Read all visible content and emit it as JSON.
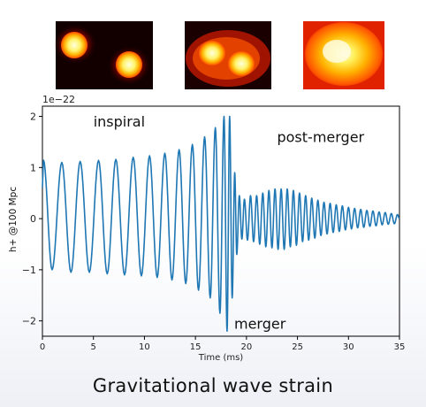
{
  "caption": "Gravitational wave strain",
  "panels": [
    {
      "name": "inspiral-snapshot",
      "description": "two separate glowing stars"
    },
    {
      "name": "merger-snapshot",
      "description": "two touching glowing stars"
    },
    {
      "name": "remnant-snapshot",
      "description": "single merged glowing remnant"
    }
  ],
  "chart_data": {
    "type": "line",
    "title": "",
    "xlabel": "Time (ms)",
    "ylabel": "h+ @100 Mpc",
    "offset_text": "1e−22",
    "xlim": [
      0,
      35
    ],
    "ylim": [
      -2.3,
      2.2
    ],
    "xticks": [
      0,
      5,
      10,
      15,
      20,
      25,
      30,
      35
    ],
    "xtick_labels": [
      "0",
      "5",
      "10",
      "15",
      "20",
      "25",
      "30",
      "35"
    ],
    "yticks": [
      -2,
      -1,
      0,
      1,
      2
    ],
    "ytick_labels": [
      "−2",
      "−1",
      "0",
      "1",
      "2"
    ],
    "grid": false,
    "line_color": "#1f77b4",
    "annotations": [
      {
        "text": "inspiral",
        "x": 5.0,
        "y": 1.8
      },
      {
        "text": "post-merger",
        "x": 23.0,
        "y": 1.5
      },
      {
        "text": "merger",
        "x": 18.8,
        "y": -2.15
      }
    ],
    "series": [
      {
        "name": "",
        "peaks": [
          {
            "t": 0.1,
            "v": 1.15
          },
          {
            "t": 0.95,
            "v": -1.0
          },
          {
            "t": 1.9,
            "v": 1.1
          },
          {
            "t": 2.8,
            "v": -1.05
          },
          {
            "t": 3.7,
            "v": 1.12
          },
          {
            "t": 4.6,
            "v": -1.05
          },
          {
            "t": 5.5,
            "v": 1.14
          },
          {
            "t": 6.35,
            "v": -1.08
          },
          {
            "t": 7.2,
            "v": 1.16
          },
          {
            "t": 8.05,
            "v": -1.1
          },
          {
            "t": 8.9,
            "v": 1.2
          },
          {
            "t": 9.7,
            "v": -1.12
          },
          {
            "t": 10.5,
            "v": 1.23
          },
          {
            "t": 11.25,
            "v": -1.15
          },
          {
            "t": 12.0,
            "v": 1.28
          },
          {
            "t": 12.7,
            "v": -1.2
          },
          {
            "t": 13.4,
            "v": 1.35
          },
          {
            "t": 14.05,
            "v": -1.27
          },
          {
            "t": 14.7,
            "v": 1.45
          },
          {
            "t": 15.3,
            "v": -1.4
          },
          {
            "t": 15.9,
            "v": 1.6
          },
          {
            "t": 16.45,
            "v": -1.55
          },
          {
            "t": 16.95,
            "v": 1.78
          },
          {
            "t": 17.4,
            "v": -1.85
          },
          {
            "t": 17.8,
            "v": 2.0
          },
          {
            "t": 18.1,
            "v": -2.2
          },
          {
            "t": 18.35,
            "v": 2.0
          },
          {
            "t": 18.6,
            "v": -1.55
          },
          {
            "t": 18.85,
            "v": 0.9
          },
          {
            "t": 19.05,
            "v": -0.7
          },
          {
            "t": 19.3,
            "v": 0.45
          },
          {
            "t": 19.55,
            "v": -0.4
          },
          {
            "t": 19.8,
            "v": 0.38
          },
          {
            "t": 20.1,
            "v": -0.42
          },
          {
            "t": 20.4,
            "v": 0.45
          },
          {
            "t": 20.7,
            "v": -0.45
          },
          {
            "t": 21.0,
            "v": 0.45
          },
          {
            "t": 21.3,
            "v": -0.5
          },
          {
            "t": 21.6,
            "v": 0.5
          },
          {
            "t": 21.9,
            "v": -0.55
          },
          {
            "t": 22.2,
            "v": 0.55
          },
          {
            "t": 22.5,
            "v": -0.57
          },
          {
            "t": 22.8,
            "v": 0.58
          },
          {
            "t": 23.1,
            "v": -0.6
          },
          {
            "t": 23.4,
            "v": 0.58
          },
          {
            "t": 23.7,
            "v": -0.6
          },
          {
            "t": 24.0,
            "v": 0.58
          },
          {
            "t": 24.3,
            "v": -0.55
          },
          {
            "t": 24.6,
            "v": 0.55
          },
          {
            "t": 24.9,
            "v": -0.52
          },
          {
            "t": 25.2,
            "v": 0.5
          },
          {
            "t": 25.5,
            "v": -0.45
          },
          {
            "t": 25.8,
            "v": 0.45
          },
          {
            "t": 26.1,
            "v": -0.42
          },
          {
            "t": 26.4,
            "v": 0.4
          },
          {
            "t": 26.7,
            "v": -0.38
          },
          {
            "t": 27.0,
            "v": 0.36
          },
          {
            "t": 27.3,
            "v": -0.33
          },
          {
            "t": 27.6,
            "v": 0.32
          },
          {
            "t": 27.9,
            "v": -0.3
          },
          {
            "t": 28.2,
            "v": 0.3
          },
          {
            "t": 28.5,
            "v": -0.27
          },
          {
            "t": 28.8,
            "v": 0.27
          },
          {
            "t": 29.1,
            "v": -0.25
          },
          {
            "t": 29.4,
            "v": 0.25
          },
          {
            "t": 29.7,
            "v": -0.22
          },
          {
            "t": 30.0,
            "v": 0.22
          },
          {
            "t": 30.3,
            "v": -0.2
          },
          {
            "t": 30.6,
            "v": 0.2
          },
          {
            "t": 30.9,
            "v": -0.18
          },
          {
            "t": 31.2,
            "v": 0.18
          },
          {
            "t": 31.5,
            "v": -0.17
          },
          {
            "t": 31.8,
            "v": 0.16
          },
          {
            "t": 32.1,
            "v": -0.15
          },
          {
            "t": 32.4,
            "v": 0.15
          },
          {
            "t": 32.7,
            "v": -0.14
          },
          {
            "t": 33.0,
            "v": 0.13
          },
          {
            "t": 33.3,
            "v": -0.12
          },
          {
            "t": 33.6,
            "v": 0.12
          },
          {
            "t": 33.9,
            "v": -0.11
          },
          {
            "t": 34.2,
            "v": 0.1
          },
          {
            "t": 34.5,
            "v": -0.1
          },
          {
            "t": 34.8,
            "v": 0.08
          },
          {
            "t": 35.0,
            "v": 0.0
          }
        ]
      }
    ]
  }
}
